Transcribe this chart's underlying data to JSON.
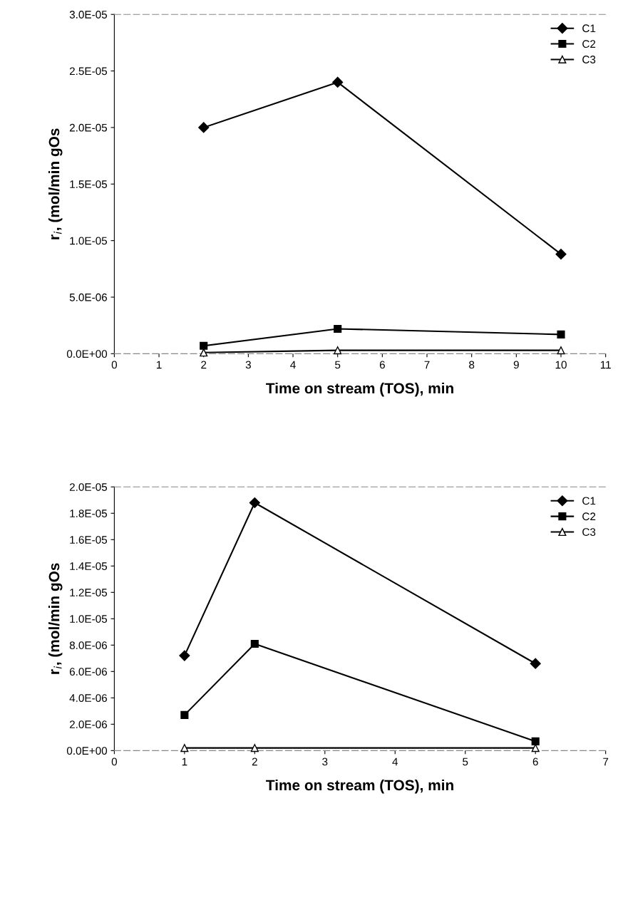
{
  "chart_data": [
    {
      "type": "line",
      "xlabel": "Time on stream (TOS), min",
      "ylabel": "r$_{i}$, (mol/min gOs",
      "x": [
        2,
        5,
        10
      ],
      "xlim": [
        0,
        11
      ],
      "xticks": [
        0,
        1,
        2,
        3,
        4,
        5,
        6,
        7,
        8,
        9,
        10,
        11
      ],
      "ylim": [
        0,
        3e-05
      ],
      "yticks": [
        {
          "value": 0,
          "label": "0.0E+00"
        },
        {
          "value": 5e-06,
          "label": "5.0E-06"
        },
        {
          "value": 1e-05,
          "label": "1.0E-05"
        },
        {
          "value": 1.5e-05,
          "label": "1.5E-05"
        },
        {
          "value": 2e-05,
          "label": "2.0E-05"
        },
        {
          "value": 2.5e-05,
          "label": "2.5E-05"
        },
        {
          "value": 3e-05,
          "label": "3.0E-05"
        }
      ],
      "legend": "top right",
      "grid": false,
      "series": [
        {
          "name": "C1",
          "color": "#000000",
          "marker": "diamond",
          "values": [
            2e-05,
            2.4e-05,
            8.8e-06
          ]
        },
        {
          "name": "C2",
          "color": "#000000",
          "marker": "square",
          "values": [
            7e-07,
            2.2e-06,
            1.7e-06
          ]
        },
        {
          "name": "C3",
          "color": "#000000",
          "marker": "triangle",
          "values": [
            1e-07,
            3e-07,
            3e-07
          ]
        }
      ]
    },
    {
      "type": "line",
      "xlabel": "Time on stream (TOS), min",
      "ylabel": "r$_{i}$, (mol/min gOs",
      "x": [
        1,
        2,
        6
      ],
      "xlim": [
        0,
        7
      ],
      "xticks": [
        0,
        1,
        2,
        3,
        4,
        5,
        6,
        7
      ],
      "ylim": [
        0,
        2e-05
      ],
      "yticks": [
        {
          "value": 0,
          "label": "0.0E+00"
        },
        {
          "value": 2e-06,
          "label": "2.0E-06"
        },
        {
          "value": 4e-06,
          "label": "4.0E-06"
        },
        {
          "value": 6e-06,
          "label": "6.0E-06"
        },
        {
          "value": 8e-06,
          "label": "8.0E-06"
        },
        {
          "value": 1e-05,
          "label": "1.0E-05"
        },
        {
          "value": 1.2e-05,
          "label": "1.2E-05"
        },
        {
          "value": 1.4e-05,
          "label": "1.4E-05"
        },
        {
          "value": 1.6e-05,
          "label": "1.6E-05"
        },
        {
          "value": 1.8e-05,
          "label": "1.8E-05"
        },
        {
          "value": 2e-05,
          "label": "2.0E-05"
        }
      ],
      "legend": "top right",
      "grid": false,
      "series": [
        {
          "name": "C1",
          "color": "#000000",
          "marker": "diamond",
          "values": [
            7.2e-06,
            1.88e-05,
            6.6e-06
          ]
        },
        {
          "name": "C2",
          "color": "#000000",
          "marker": "square",
          "values": [
            2.7e-06,
            8.1e-06,
            7e-07
          ]
        },
        {
          "name": "C3",
          "color": "#000000",
          "marker": "triangle",
          "values": [
            2e-07,
            2e-07,
            2e-07
          ]
        }
      ]
    }
  ]
}
